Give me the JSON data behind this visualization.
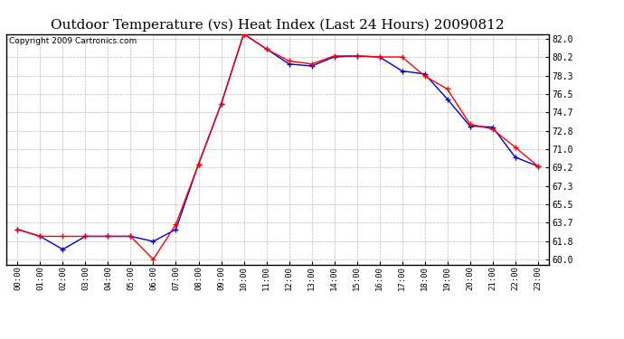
{
  "title": "Outdoor Temperature (vs) Heat Index (Last 24 Hours) 20090812",
  "copyright_text": "Copyright 2009 Cartronics.com",
  "x_labels": [
    "00:00",
    "01:00",
    "02:00",
    "03:00",
    "04:00",
    "05:00",
    "06:00",
    "07:00",
    "08:00",
    "09:00",
    "10:00",
    "11:00",
    "12:00",
    "13:00",
    "14:00",
    "15:00",
    "16:00",
    "17:00",
    "18:00",
    "19:00",
    "20:00",
    "21:00",
    "22:00",
    "23:00"
  ],
  "temp_data": [
    63.0,
    62.3,
    62.3,
    62.3,
    62.3,
    62.3,
    60.0,
    63.5,
    69.5,
    75.5,
    82.5,
    81.0,
    79.8,
    79.5,
    80.3,
    80.3,
    80.2,
    80.2,
    78.3,
    77.0,
    73.5,
    73.0,
    71.2,
    69.3
  ],
  "heat_index_data": [
    63.0,
    62.3,
    61.0,
    62.3,
    62.3,
    62.3,
    61.8,
    63.0,
    69.5,
    75.5,
    82.5,
    81.0,
    79.5,
    79.3,
    80.2,
    80.3,
    80.2,
    78.8,
    78.5,
    76.0,
    73.3,
    73.2,
    70.2,
    69.3
  ],
  "y_ticks": [
    60.0,
    61.8,
    63.7,
    65.5,
    67.3,
    69.2,
    71.0,
    72.8,
    74.7,
    76.5,
    78.3,
    80.2,
    82.0
  ],
  "y_min": 59.5,
  "y_max": 82.5,
  "temp_color": "#FF0000",
  "heat_index_color": "#0000CC",
  "bg_color": "#FFFFFF",
  "grid_color": "#BBBBBB",
  "title_fontsize": 11,
  "copyright_fontsize": 6.5
}
